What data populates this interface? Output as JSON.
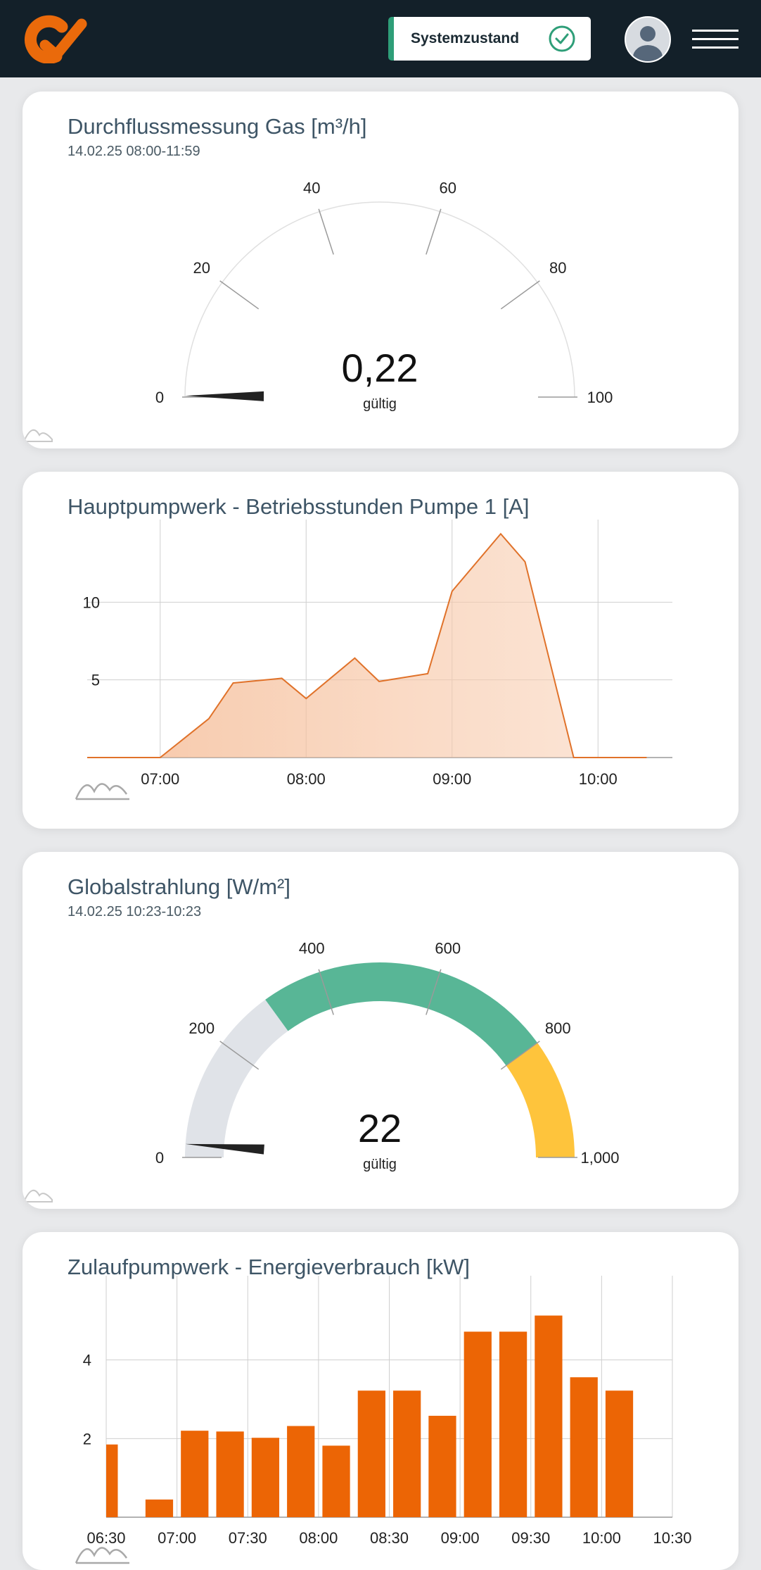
{
  "header": {
    "status_label": "Systemzustand",
    "brand_color": "#ea6a0b",
    "status_color": "#2e9e78"
  },
  "cards": [
    {
      "title": "Durchflussmessung Gas [m³/h]",
      "subtitle": "14.02.25 08:00-11:59",
      "value": "0,22",
      "value_note": "gültig",
      "gauge": {
        "min": 0,
        "max": 100,
        "ticks": [
          "0",
          "20",
          "40",
          "60",
          "80",
          "100"
        ],
        "needle_value": 0.22
      }
    },
    {
      "title": "Hauptpumpwerk - Betriebsstunden Pumpe 1 [A]"
    },
    {
      "title": "Globalstrahlung [W/m²]",
      "subtitle": "14.02.25 10:23-10:23",
      "value": "22",
      "value_note": "gültig",
      "gauge": {
        "min": 0,
        "max": 1000,
        "ticks": [
          "0",
          "200",
          "400",
          "600",
          "800",
          "1,000"
        ],
        "needle_value": 22,
        "bands": [
          {
            "from": 0,
            "to": 300,
            "color": "#e0e3e8"
          },
          {
            "from": 300,
            "to": 800,
            "color": "#58b696"
          },
          {
            "from": 800,
            "to": 1000,
            "color": "#fec43c"
          }
        ]
      }
    },
    {
      "title": "Zulaufpumpwerk - Energieverbrauch [kW]"
    }
  ],
  "chart_data": [
    {
      "type": "area",
      "title": "Hauptpumpwerk - Betriebsstunden Pumpe 1 [A]",
      "x": [
        "06:30",
        "07:00",
        "07:20",
        "07:30",
        "07:50",
        "08:00",
        "08:20",
        "08:30",
        "08:50",
        "09:00",
        "09:20",
        "09:30",
        "09:50",
        "10:20"
      ],
      "values": [
        0,
        0,
        2.5,
        4.8,
        5.1,
        3.8,
        6.4,
        4.9,
        5.4,
        10.7,
        14.4,
        12.6,
        0,
        0
      ],
      "x_ticks": [
        "07:00",
        "08:00",
        "09:00",
        "10:00"
      ],
      "y_ticks": [
        5,
        10
      ],
      "ylim": [
        0,
        15
      ],
      "color": "#e0722a"
    },
    {
      "type": "bar",
      "title": "Zulaufpumpwerk - Energieverbrauch [kW]",
      "categories": [
        "06:30",
        "06:45",
        "07:00",
        "07:15",
        "07:30",
        "07:45",
        "08:00",
        "08:15",
        "08:30",
        "08:45",
        "09:00",
        "09:15",
        "09:30",
        "09:45",
        "10:00"
      ],
      "values": [
        1.85,
        0.45,
        2.2,
        2.18,
        2.02,
        2.32,
        1.82,
        3.22,
        3.22,
        2.58,
        4.72,
        4.72,
        5.13,
        3.56,
        3.22
      ],
      "x_ticks": [
        "06:30",
        "07:00",
        "07:30",
        "08:00",
        "08:30",
        "09:00",
        "09:30",
        "10:00",
        "10:30"
      ],
      "y_ticks": [
        2,
        4
      ],
      "ylim": [
        0,
        6
      ],
      "color": "#ec6505"
    }
  ]
}
